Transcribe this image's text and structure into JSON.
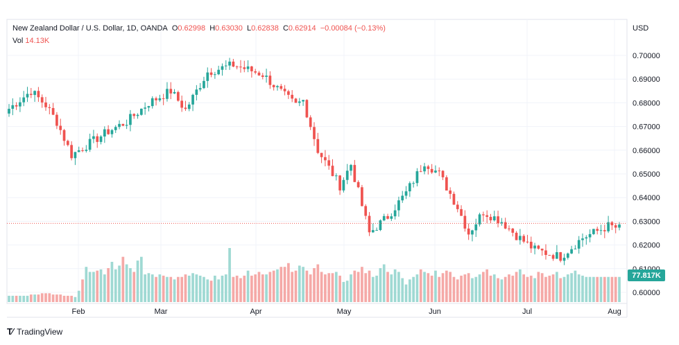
{
  "header": {
    "symbol": "New Zealand Dollar / U.S. Dollar, 1D, OANDA",
    "o_label": "O",
    "o_value": "0.62998",
    "h_label": "H",
    "h_value": "0.63030",
    "l_label": "L",
    "l_value": "0.62838",
    "c_label": "C",
    "c_value": "0.62914",
    "change": "−0.00084 (−0.13%)",
    "vol_label": "Vol",
    "vol_value": "14.13K",
    "currency": "USD"
  },
  "footer": {
    "brand": "TradingView",
    "logo": "tradingview-logo-icon"
  },
  "colors": {
    "up": "#26a69a",
    "down": "#ef5350",
    "up_vol": "#9fd9d3",
    "down_vol": "#f5a9a7",
    "grid": "#f0f3fa"
  },
  "chart_data": {
    "type": "candlestick",
    "y_axis": {
      "min": 0.6,
      "max": 0.7,
      "ticks": [
        "0.70000",
        "0.69000",
        "0.68000",
        "0.67000",
        "0.66000",
        "0.65000",
        "0.64000",
        "0.63000",
        "0.62000",
        "0.61000",
        "0.60000"
      ]
    },
    "x_labels": [
      "Feb",
      "Mar",
      "Apr",
      "May",
      "Jun",
      "Jul",
      "Aug"
    ],
    "last_price": 0.62914,
    "volume_label": "77.817K",
    "waypoints": [
      [
        0,
        0.6775
      ],
      [
        6,
        0.685
      ],
      [
        10,
        0.679
      ],
      [
        13,
        0.672
      ],
      [
        17,
        0.658
      ],
      [
        21,
        0.662
      ],
      [
        27,
        0.668
      ],
      [
        32,
        0.672
      ],
      [
        38,
        0.68
      ],
      [
        44,
        0.685
      ],
      [
        48,
        0.677
      ],
      [
        54,
        0.693
      ],
      [
        61,
        0.696
      ],
      [
        69,
        0.692
      ],
      [
        75,
        0.683
      ],
      [
        78,
        0.679
      ],
      [
        80,
        0.681
      ],
      [
        84,
        0.66
      ],
      [
        90,
        0.645
      ],
      [
        93,
        0.654
      ],
      [
        98,
        0.625
      ],
      [
        103,
        0.632
      ],
      [
        108,
        0.642
      ],
      [
        113,
        0.655
      ],
      [
        117,
        0.65
      ],
      [
        122,
        0.636
      ],
      [
        125,
        0.625
      ],
      [
        129,
        0.634
      ],
      [
        134,
        0.63
      ],
      [
        138,
        0.624
      ],
      [
        143,
        0.618
      ],
      [
        150,
        0.615
      ],
      [
        156,
        0.623
      ],
      [
        163,
        0.628
      ],
      [
        166,
        0.627
      ]
    ],
    "volumes": [
      5,
      5,
      5,
      5,
      5,
      5,
      6,
      6,
      6,
      7,
      7,
      7,
      6,
      6,
      6,
      5,
      5,
      5,
      4,
      9,
      18,
      28,
      24,
      24,
      25,
      26,
      22,
      27,
      32,
      26,
      29,
      36,
      30,
      27,
      24,
      33,
      36,
      22,
      23,
      22,
      20,
      22,
      21,
      20,
      20,
      18,
      20,
      20,
      22,
      21,
      23,
      22,
      21,
      20,
      18,
      17,
      21,
      18,
      21,
      22,
      43,
      20,
      21,
      19,
      21,
      25,
      21,
      22,
      24,
      22,
      22,
      24,
      25,
      26,
      28,
      28,
      31,
      24,
      25,
      29,
      28,
      25,
      22,
      27,
      30,
      24,
      22,
      23,
      23,
      24,
      21,
      16,
      17,
      22,
      25,
      24,
      28,
      23,
      25,
      20,
      21,
      27,
      30,
      24,
      22,
      26,
      24,
      19,
      14,
      18,
      20,
      22,
      26,
      24,
      23,
      21,
      25,
      20,
      23,
      25,
      24,
      20,
      18,
      21,
      22,
      23,
      19,
      20,
      22,
      24,
      26,
      21,
      22,
      19,
      18,
      20,
      22,
      21,
      24,
      26,
      22,
      20,
      21,
      19,
      24,
      23,
      20,
      21,
      22,
      24,
      19,
      20,
      22,
      23,
      25,
      22,
      21
    ]
  }
}
